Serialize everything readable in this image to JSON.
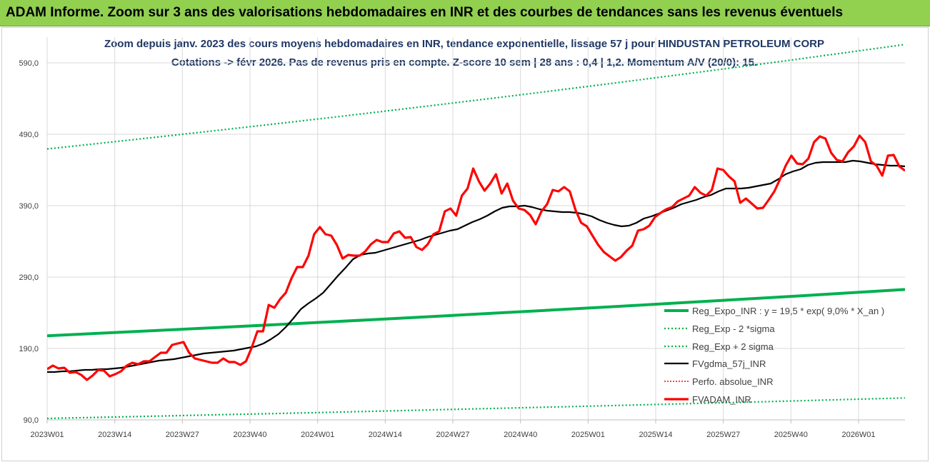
{
  "header": {
    "title": "ADAM Informe. Zoom sur 3 ans des valorisations hebdomadaires en INR et des courbes de tendances sans les revenus éventuels",
    "bg_color": "#92d050"
  },
  "chart_data": {
    "type": "line",
    "title": "Zoom depuis janv. 2023 des cours moyens hebdomadaires en INR, tendance exponentielle, lissage 57 j pour HINDUSTAN PETROLEUM CORP",
    "subtitle": "Cotations -> févr 2026. Pas de revenus pris en compte. Z-score 10 sem | 28 ans : 0,4 | 1,2. Momentum A/V (20/0): 15.",
    "xlabel": "",
    "ylabel": "",
    "ylim": [
      90,
      610
    ],
    "grid": true,
    "legend_position": "right-bottom",
    "x_tick_labels": [
      "2023W01",
      "2023W14",
      "2023W27",
      "2023W40",
      "2024W01",
      "2024W14",
      "2024W27",
      "2024W40",
      "2025W01",
      "2025W14",
      "2025W27",
      "2025W40",
      "2026W01"
    ],
    "y_tick_labels": [
      "90,0",
      "190,0",
      "290,0",
      "390,0",
      "490,0",
      "590,0"
    ],
    "y_ticks": [
      90,
      190,
      290,
      390,
      490,
      590
    ],
    "series": [
      {
        "name": "Reg_Expo_INR : y = 19,5 * exp( 9,0% *  X_an )",
        "color": "#00b050",
        "style": "solid-thick",
        "values": [
          207.8,
          211.6,
          215.5,
          219.4,
          223.4,
          227.5,
          231.6,
          235.9,
          240.2,
          244.6,
          249.0,
          253.6,
          258.2,
          262.9,
          267.7,
          272.6
        ]
      },
      {
        "name": "Reg_Exp - 2 *sigma",
        "color": "#00b050",
        "style": "dotted",
        "values": [
          92.0,
          93.7,
          95.4,
          97.2,
          98.9,
          100.7,
          102.6,
          104.5,
          106.4,
          108.3,
          110.3,
          112.3,
          114.3,
          116.4,
          118.6,
          120.7
        ]
      },
      {
        "name": "Reg_Exp + 2 sigma",
        "color": "#00b050",
        "style": "dotted",
        "values": [
          469.4,
          478.0,
          486.7,
          495.6,
          504.6,
          513.8,
          523.2,
          532.8,
          542.5,
          552.4,
          562.5,
          572.8,
          583.2,
          593.8,
          604.7,
          615.7
        ]
      },
      {
        "name": "FVgdma_57j_INR",
        "color": "#000000",
        "style": "solid",
        "values": [
          157,
          157,
          158,
          158,
          159,
          160,
          160,
          161,
          161,
          162,
          163,
          165,
          167,
          169,
          171,
          173,
          174,
          175,
          177,
          179,
          181,
          183,
          184,
          185,
          186,
          187,
          189,
          191,
          193,
          197,
          203,
          210,
          220,
          232,
          245,
          253,
          260,
          268,
          280,
          292,
          303,
          315,
          321,
          323,
          324,
          327,
          330,
          333,
          336,
          339,
          342,
          346,
          349,
          352,
          355,
          357,
          362,
          367,
          371,
          376,
          382,
          387,
          389,
          389,
          390,
          388,
          385,
          383,
          382,
          381,
          381,
          380,
          378,
          375,
          370,
          366,
          363,
          361,
          362,
          366,
          372,
          375,
          379,
          383,
          387,
          392,
          395,
          398,
          402,
          405,
          410,
          414,
          414,
          414,
          415,
          417,
          419,
          421,
          427,
          434,
          438,
          441,
          447,
          450,
          451,
          451,
          451,
          451,
          453,
          452,
          450,
          448,
          447,
          446,
          446,
          445
        ]
      },
      {
        "name": "Perfo. absolue_INR",
        "color": "#ff0000",
        "style": "dotted",
        "values": []
      },
      {
        "name": "FVADAM_INR",
        "color": "#ff0000",
        "style": "solid-thick",
        "values": [
          161,
          166,
          162,
          163,
          156,
          157,
          153,
          146,
          152,
          160,
          159,
          151,
          154,
          158,
          166,
          170,
          168,
          172,
          172,
          178,
          184,
          184,
          195,
          197,
          199,
          184,
          176,
          174,
          172,
          170,
          170,
          176,
          171,
          171,
          167,
          172,
          191,
          214,
          214,
          251,
          247,
          259,
          268,
          288,
          304,
          304,
          320,
          350,
          360,
          350,
          348,
          335,
          316,
          321,
          320,
          320,
          326,
          336,
          342,
          339,
          339,
          351,
          354,
          345,
          346,
          332,
          328,
          336,
          350,
          354,
          382,
          386,
          376,
          404,
          414,
          442,
          424,
          411,
          421,
          434,
          407,
          421,
          397,
          386,
          384,
          377,
          364,
          382,
          392,
          412,
          410,
          416,
          410,
          384,
          366,
          361,
          348,
          335,
          325,
          319,
          313,
          318,
          327,
          334,
          355,
          357,
          362,
          374,
          380,
          385,
          388,
          396,
          400,
          404,
          416,
          408,
          404,
          412,
          442,
          440,
          431,
          424,
          394,
          400,
          393,
          386,
          387,
          398,
          410,
          427,
          446,
          460,
          449,
          448,
          456,
          479,
          487,
          484,
          464,
          454,
          452,
          465,
          473,
          488,
          479,
          452,
          446,
          432,
          460,
          461,
          445,
          439
        ]
      }
    ]
  }
}
